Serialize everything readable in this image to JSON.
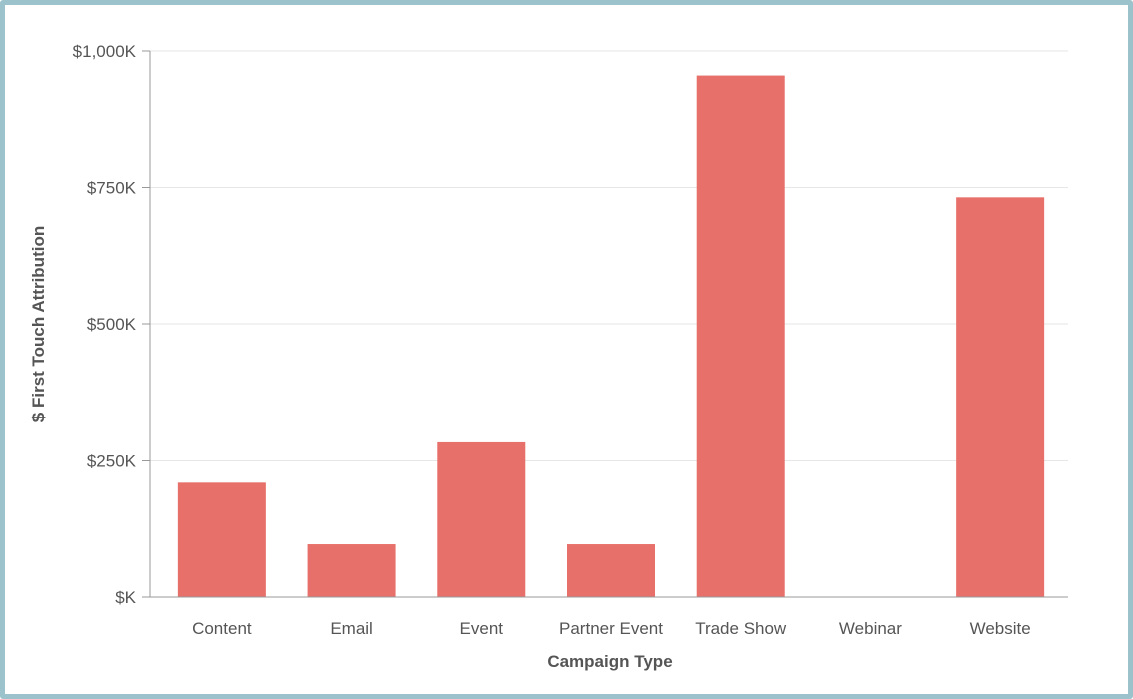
{
  "chart_data": {
    "type": "bar",
    "title": "",
    "xlabel": "Campaign Type",
    "ylabel": "$ First Touch Attribution",
    "categories": [
      "Content",
      "Email",
      "Event",
      "Partner Event",
      "Trade Show",
      "Webinar",
      "Website"
    ],
    "values": [
      210,
      97,
      284,
      97,
      955,
      0,
      732
    ],
    "value_unit": "thousands of dollars",
    "ylim": [
      0,
      1000
    ],
    "yticks": [
      0,
      250,
      500,
      750,
      1000
    ],
    "ytick_labels": [
      "$K",
      "$250K",
      "$500K",
      "$750K",
      "$1,000K"
    ],
    "grid": true,
    "legend": "none",
    "colors": {
      "bar": "#e8706a",
      "grid": "#e6e6e6",
      "axis": "#999999",
      "text": "#555555",
      "frame": "#9cc3cc"
    }
  }
}
